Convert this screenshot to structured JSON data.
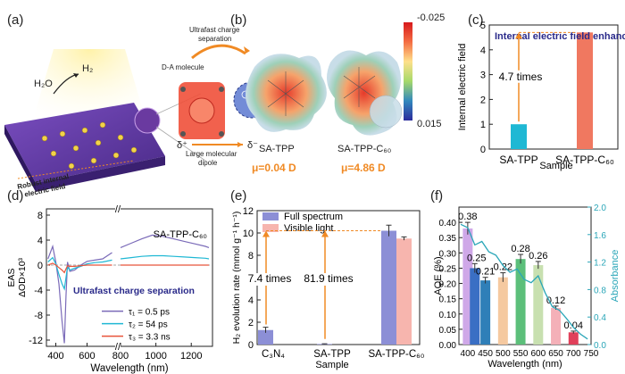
{
  "panels": {
    "a": {
      "label": "(a)",
      "h2o": "H₂O",
      "h2": "H₂",
      "da_molecule": "D-A molecule",
      "charge_sep": "Ultrafast charge\nseparation",
      "dipole": "Large molecular\ndipole",
      "delta_plus": "δ⁺",
      "delta_minus": "δ⁻",
      "electric_field": "Robust internal\nelectric field"
    },
    "b": {
      "label": "(b)",
      "name1": "SA-TPP",
      "name2": "SA-TPP-C₆₀",
      "dipole1": "μ=0.04 D",
      "dipole2": "μ=4.86 D",
      "scale_max": "-0.025",
      "scale_min": "0.015"
    }
  },
  "colors": {
    "orange": "#f08a24",
    "cyan": "#1fb8d4",
    "salmon": "#f07860",
    "navy": "#2a2a8a",
    "teal": "#2aa6b8"
  },
  "chart_data": [
    {
      "id": "c",
      "label": "(c)",
      "type": "bar",
      "categories": [
        "SA-TPP",
        "SA-TPP-C₆₀"
      ],
      "values": [
        1.0,
        4.7
      ],
      "bar_colors": [
        "#1fb8d4",
        "#f07860"
      ],
      "xlabel": "Sample",
      "ylabel": "Internal electric field",
      "ylim": [
        0,
        5
      ],
      "yticks": [
        0,
        1,
        2,
        3,
        4,
        5
      ],
      "annotation_title": "Internal electric field enhanced",
      "annotation_ratio": "4.7 times"
    },
    {
      "id": "d",
      "label": "(d)",
      "type": "line",
      "title_in_plot": "SA-TPP-C₆₀",
      "banner": "Ultrafast charge separation",
      "xlabel": "Wavelength (nm)",
      "ylabel": "EAS\nΔOD×10³",
      "ylim": [
        -13,
        9
      ],
      "yticks": [
        -12,
        -8,
        -4,
        0,
        4,
        8
      ],
      "xticks_left": [
        400,
        600
      ],
      "xticks_right": [
        800,
        1000,
        1200
      ],
      "break_marks": "//",
      "series": [
        {
          "name": "τ₁ = 0.5 ps",
          "color": "#7a6ab8",
          "x": [
            350,
            380,
            400,
            420,
            440,
            455,
            465,
            475,
            490,
            520,
            560,
            600,
            650,
            700,
            760,
            800,
            860,
            920,
            980,
            1040,
            1100,
            1160,
            1220,
            1280,
            1300
          ],
          "y": [
            1.0,
            3.0,
            0.5,
            -3.0,
            -9.0,
            -12.5,
            -5.0,
            0.5,
            -1.0,
            -0.8,
            0.0,
            0.6,
            0.8,
            1.0,
            2.0,
            2.8,
            3.5,
            4.2,
            4.8,
            4.6,
            4.2,
            3.8,
            3.4,
            3.0,
            2.8
          ]
        },
        {
          "name": "τ₂ = 54 ps",
          "color": "#1fb8d4",
          "x": [
            350,
            380,
            400,
            420,
            440,
            455,
            465,
            475,
            490,
            520,
            560,
            600,
            650,
            700,
            760,
            800,
            860,
            920,
            980,
            1040,
            1100,
            1160,
            1220,
            1280,
            1300
          ],
          "y": [
            0.5,
            1.2,
            0.2,
            -1.5,
            -3.0,
            -3.8,
            -2.0,
            -0.3,
            -0.8,
            -0.5,
            -0.2,
            0.2,
            0.4,
            0.5,
            0.8,
            1.0,
            1.2,
            1.4,
            1.5,
            1.5,
            1.4,
            1.3,
            1.2,
            1.1,
            1.0
          ]
        },
        {
          "name": "τ₃ = 3.3 ns",
          "color": "#e8533a",
          "x": [
            350,
            380,
            400,
            420,
            440,
            455,
            465,
            475,
            490,
            520,
            560,
            600,
            650,
            700,
            760,
            800,
            860,
            920,
            980,
            1040,
            1100,
            1160,
            1220,
            1280,
            1300
          ],
          "y": [
            0.0,
            0.3,
            0.0,
            -0.4,
            -0.8,
            -1.2,
            -0.6,
            -0.1,
            -0.2,
            -0.2,
            -0.1,
            0.0,
            0.0,
            0.0,
            0.0,
            0.0,
            0.0,
            0.0,
            0.0,
            0.0,
            0.0,
            0.0,
            0.0,
            0.0,
            0.0
          ]
        }
      ]
    },
    {
      "id": "e",
      "label": "(e)",
      "type": "bar",
      "categories": [
        "C₃N₄",
        "SA-TPP",
        "SA-TPP-C₆₀"
      ],
      "xlabel": "Sample",
      "ylabel": "H₂ evolution rate (mmol g⁻¹ h⁻¹)",
      "ylim": [
        0,
        12
      ],
      "yticks": [
        0,
        2,
        4,
        6,
        8,
        10,
        12
      ],
      "series": [
        {
          "name": "Full spectrum",
          "color": "#8c8fd6",
          "values": [
            1.3,
            0.05,
            10.2
          ],
          "errors": [
            0.25,
            0.02,
            0.5
          ]
        },
        {
          "name": "Visible light",
          "color": "#f7b5ae",
          "values": [
            0.0,
            0.0,
            9.5
          ],
          "errors": [
            0.0,
            0.0,
            0.15
          ]
        }
      ],
      "annotations": [
        "7.4 times",
        "81.9 times"
      ]
    },
    {
      "id": "f",
      "label": "(f)",
      "type": "bar",
      "xlabel": "Wavelength (nm)",
      "ylabel": "AQE (%)",
      "ylabel_right": "Absorbance",
      "ylim": [
        0,
        0.45
      ],
      "yticks": [
        0.0,
        0.05,
        0.1,
        0.15,
        0.2,
        0.25,
        0.3,
        0.35,
        0.4
      ],
      "ylim_right": [
        0,
        2.0
      ],
      "yticks_right": [
        0.0,
        0.4,
        0.8,
        1.2,
        1.6,
        2.0
      ],
      "xlim": [
        375,
        750
      ],
      "xticks": [
        400,
        450,
        500,
        550,
        600,
        650,
        700,
        750
      ],
      "bars": [
        {
          "x": 400,
          "value": 0.38,
          "label": "0.38",
          "color": "#cfa8e8",
          "error": 0.02
        },
        {
          "x": 420,
          "value": 0.25,
          "label": "0.25",
          "color": "#3a6fc4",
          "error": 0.015
        },
        {
          "x": 450,
          "value": 0.21,
          "label": "0.21",
          "color": "#2f7fb8",
          "error": 0.01
        },
        {
          "x": 500,
          "value": 0.22,
          "label": "0.22",
          "color": "#f5c9a0",
          "error": 0.015
        },
        {
          "x": 550,
          "value": 0.28,
          "label": "0.28",
          "color": "#5cbf7a",
          "error": 0.015
        },
        {
          "x": 600,
          "value": 0.26,
          "label": "0.26",
          "color": "#c8e0b0",
          "error": 0.012
        },
        {
          "x": 650,
          "value": 0.12,
          "label": "0.12",
          "color": "#f4b0b8",
          "error": 0.006
        },
        {
          "x": 700,
          "value": 0.04,
          "label": "0.04",
          "color": "#e0405a",
          "error": 0.004
        }
      ],
      "absorbance": {
        "color": "#2aa6b8",
        "x": [
          380,
          400,
          420,
          440,
          460,
          480,
          500,
          520,
          540,
          560,
          580,
          600,
          620,
          640,
          660,
          680,
          700,
          720,
          740
        ],
        "y": [
          1.75,
          1.7,
          1.45,
          1.5,
          1.35,
          1.3,
          1.15,
          1.05,
          1.1,
          0.95,
          0.9,
          1.0,
          0.75,
          0.55,
          0.5,
          0.38,
          0.25,
          0.15,
          0.08
        ]
      }
    }
  ]
}
